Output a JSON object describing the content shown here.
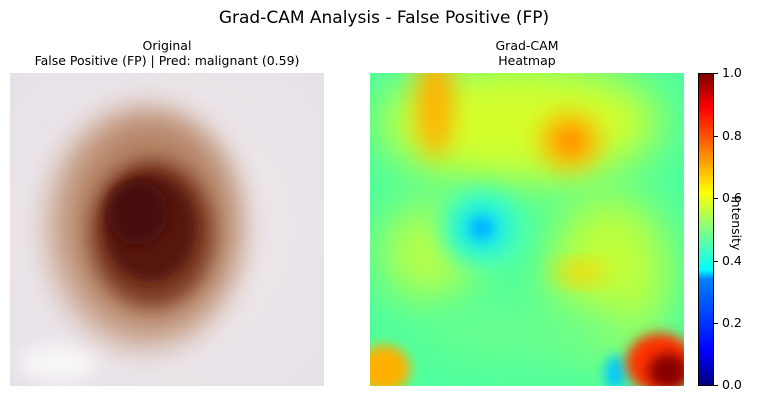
{
  "figure": {
    "title": "Grad-CAM Analysis - False Positive (FP)"
  },
  "left_panel": {
    "title_line1": "Original",
    "title_line2": "False Positive (FP) | Pred: malignant (0.59)"
  },
  "right_panel": {
    "title_line1": "Grad-CAM",
    "title_line2": "Heatmap"
  },
  "colorbar": {
    "label": "Intensity",
    "ticks": [
      "0.0",
      "0.2",
      "0.4",
      "0.6",
      "0.8",
      "1.0"
    ],
    "colormap": "jet"
  }
}
